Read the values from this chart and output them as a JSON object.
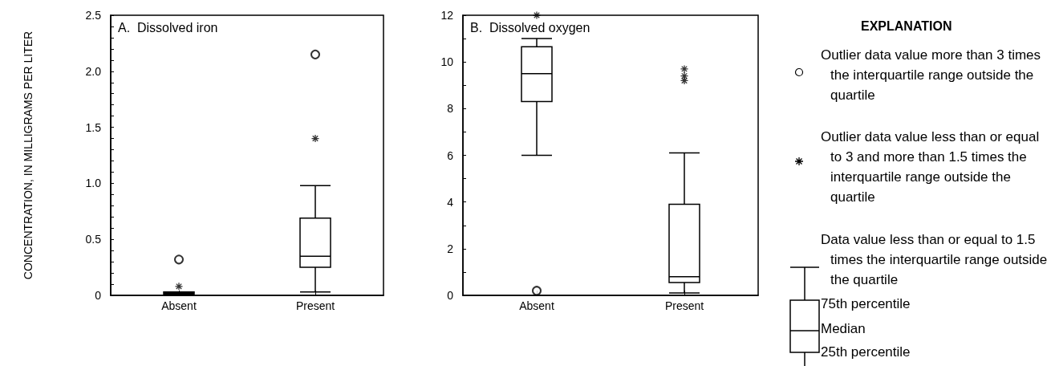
{
  "chart_data": [
    {
      "type": "box",
      "title": "A.  Dissolved iron",
      "ylabel": "CONCENTRATION, IN MILLIGRAMS PER LITER",
      "categories": [
        "Absent",
        "Present"
      ],
      "ylim": [
        0,
        2.5
      ],
      "yticks": [
        0,
        {
          "value": 0.1,
          "label": null
        },
        {
          "value": 0.2,
          "label": null
        },
        {
          "value": 0.3,
          "label": null
        },
        {
          "value": 0.4,
          "label": null
        },
        0.5,
        {
          "value": 0.6,
          "label": null
        },
        {
          "value": 0.7,
          "label": null
        },
        {
          "value": 0.8,
          "label": null
        },
        {
          "value": 0.9,
          "label": null
        },
        {
          "value": 1,
          "label": "1.0"
        },
        {
          "value": 1.1,
          "label": null
        },
        {
          "value": 1.2,
          "label": null
        },
        {
          "value": 1.3,
          "label": null
        },
        {
          "value": 1.4,
          "label": null
        },
        1.5,
        {
          "value": 1.6,
          "label": null
        },
        {
          "value": 1.7,
          "label": null
        },
        {
          "value": 1.8,
          "label": null
        },
        {
          "value": 1.9,
          "label": null
        },
        {
          "value": 2,
          "label": "2.0"
        },
        {
          "value": 2.1,
          "label": null
        },
        {
          "value": 2.2,
          "label": null
        },
        {
          "value": 2.3,
          "label": null
        },
        {
          "value": 2.4,
          "label": null
        },
        2.5
      ],
      "series": [
        {
          "type": "box",
          "color": "#000000",
          "boxes": [
            {
              "low": 0,
              "q1": 0.01,
              "median": 0.02,
              "q3": 0.03,
              "high": 0.03
            },
            {
              "low": 0.03,
              "q1": 0.25,
              "median": 0.35,
              "q3": 0.69,
              "high": 0.98
            }
          ]
        },
        {
          "type": "scatter",
          "marker": "circle",
          "color": "#000000",
          "x": [
            "Absent",
            "Present"
          ],
          "values": [
            0.32,
            2.15
          ]
        },
        {
          "type": "scatter",
          "marker": "cross",
          "color": "#000000",
          "x": [
            "Absent",
            "Present"
          ],
          "values": [
            0.08,
            1.4
          ]
        }
      ]
    },
    {
      "type": "box",
      "title": "B.  Dissolved oxygen",
      "categories": [
        "Absent",
        "Present"
      ],
      "ylim": [
        0,
        12
      ],
      "yticks": [
        0,
        {
          "value": 1,
          "label": null
        },
        2,
        {
          "value": 3,
          "label": null
        },
        4,
        {
          "value": 5,
          "label": null
        },
        6,
        {
          "value": 7,
          "label": null
        },
        8,
        {
          "value": 9,
          "label": null
        },
        10,
        {
          "value": 11,
          "label": null
        },
        12
      ],
      "series": [
        {
          "type": "box",
          "color": "#000000",
          "boxes": [
            {
              "low": 6,
              "q1": 8.3,
              "median": 9.5,
              "q3": 10.65,
              "high": 11
            },
            {
              "low": 0.1,
              "q1": 0.55,
              "median": 0.8,
              "q3": 3.9,
              "high": 6.1
            }
          ]
        },
        {
          "type": "scatter",
          "marker": "circle",
          "color": "#000000",
          "x": [
            "Absent"
          ],
          "values": [
            0.2
          ]
        },
        {
          "type": "scatter",
          "marker": "cross",
          "color": "#000000",
          "x": [
            "Absent",
            "Present",
            "Present",
            "Present"
          ],
          "values": [
            12,
            9.2,
            9.4,
            9.7
          ]
        }
      ]
    },
    {
      "type": "other",
      "title": "EXPLANATION",
      "annotations": [
        "Outlier data value more than 3 times the interquartile range outside the quartile",
        "Outlier data value less than or equal to 3 and more than 1.5 times the interquartile range outside the quartile",
        "Data value less than or equal to 1.5 times the interquartile range outside the quartile",
        "75th percentile",
        "Median",
        "25th percentile"
      ]
    }
  ]
}
